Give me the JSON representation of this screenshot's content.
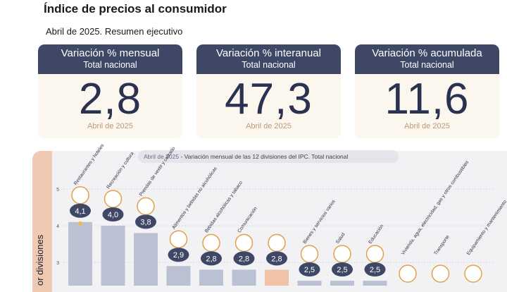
{
  "header": {
    "title": "Índice de precios al consumidor",
    "subtitle": "Abril de 2025. Resumen ejecutivo"
  },
  "cards": [
    {
      "title": "Variación % mensual",
      "subtitle": "Total nacional",
      "value": "2,8",
      "footer": "Abril de 2025"
    },
    {
      "title": "Variación % interanual",
      "subtitle": "Total nacional",
      "value": "47,3",
      "footer": "Abril de 2025"
    },
    {
      "title": "Variación % acumulada",
      "subtitle": "Total nacional",
      "value": "11,6",
      "footer": "Abril de 2025"
    }
  ],
  "sidebar_label": "or divisiones",
  "chart_data": {
    "type": "bar",
    "title_date": "Abril de 2025",
    "title": " - Variación mensual de las 12 divisiones del IPC. Total nacional",
    "ylim": [
      0,
      5
    ],
    "yticks": [
      3,
      4,
      5
    ],
    "categories": [
      "Restaurantes y hoteles",
      "Recreación y cultura",
      "Prendas de vestir y calzado",
      "Alimentos y bebidas no alcohólicas",
      "Bebidas alcohólicas y tabaco",
      "Comunicación",
      "",
      "Bienes y servicios varios",
      "Salud",
      "Educación",
      "Vivienda, agua, electricidad, gas y otros combustibles",
      "Transporte",
      "Equipamiento y mantenimiento"
    ],
    "values": [
      4.1,
      4.0,
      3.8,
      2.9,
      2.8,
      2.8,
      2.8,
      2.5,
      2.5,
      2.5,
      null,
      null,
      null
    ],
    "value_labels": [
      "4,1",
      "4,0",
      "3,8",
      "2,9",
      "2,8",
      "2,8",
      "2,8",
      "2,5",
      "2,5",
      "2,5",
      "",
      "",
      ""
    ],
    "highlight_index": 6,
    "colors": {
      "bar": "#b9c1d3",
      "highlight": "#f0c3a6",
      "bubble": "#3f4766",
      "grid": "#d4d4dc"
    }
  }
}
